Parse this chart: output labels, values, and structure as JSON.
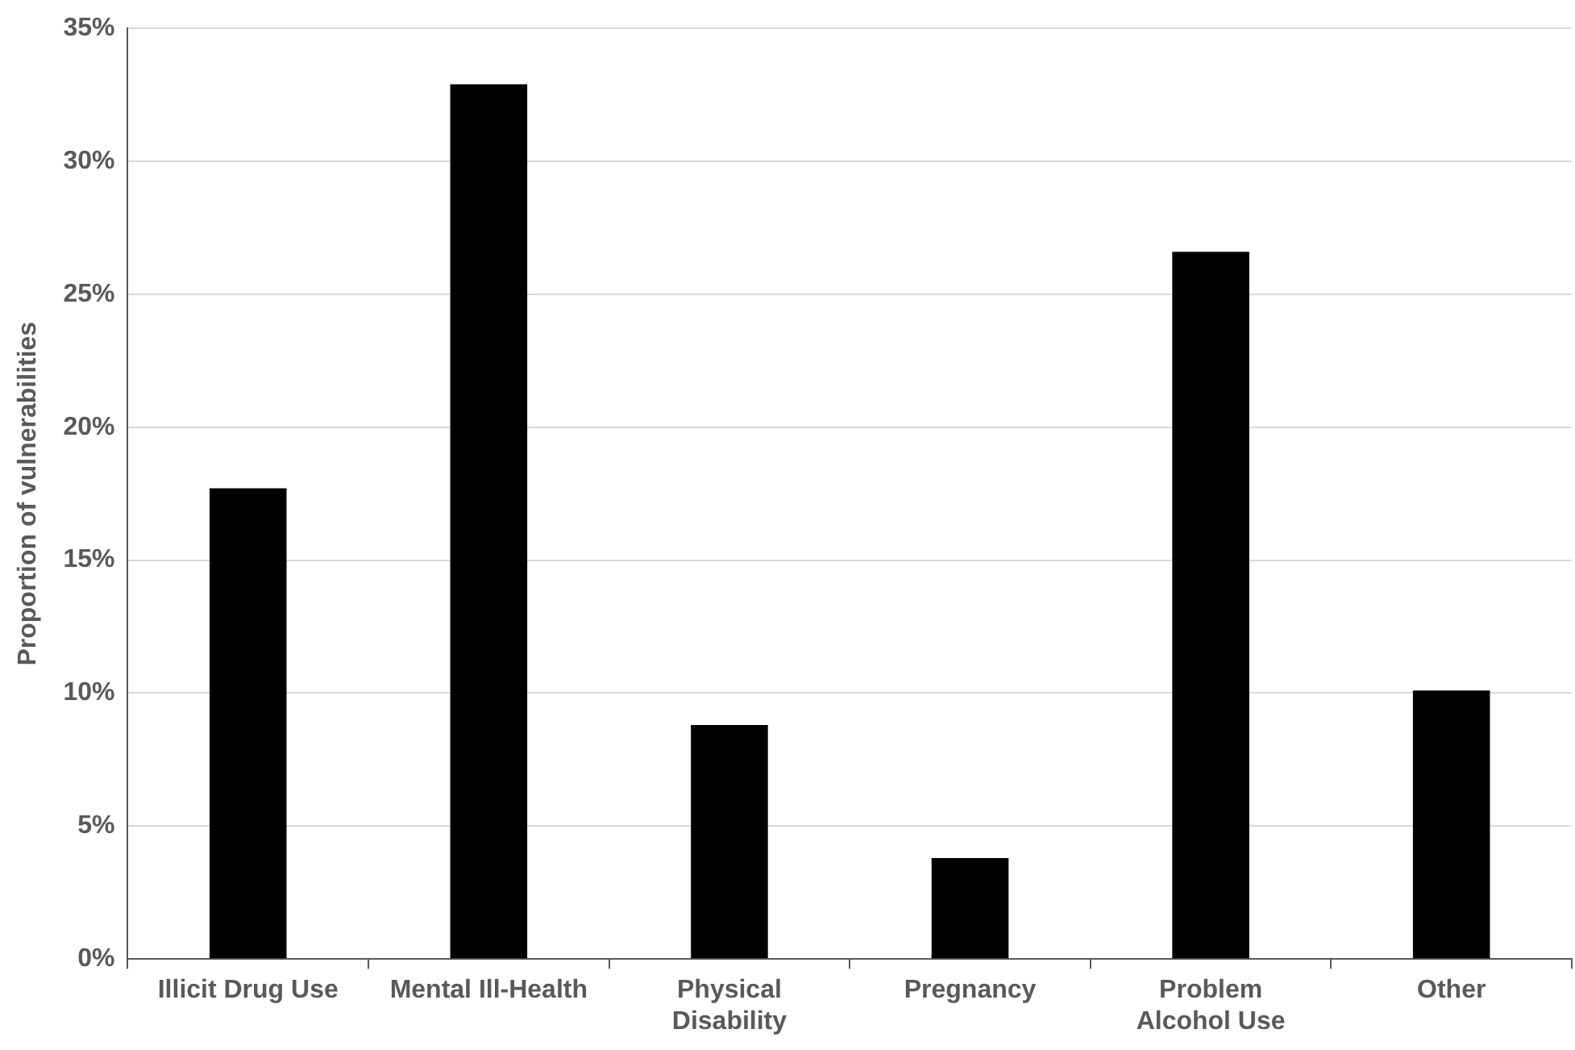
{
  "chart_data": {
    "type": "bar",
    "ylabel": "Proportion of vulnerabilities",
    "categories": [
      "Illicit Drug Use",
      "Mental Ill-Health",
      "Physical Disability",
      "Pregnancy",
      "Problem Alcohol Use",
      "Other"
    ],
    "values": [
      17.7,
      32.9,
      8.8,
      3.8,
      26.6,
      10.1
    ],
    "color": "#000000",
    "ylim": [
      0,
      35
    ],
    "yticks": [
      {
        "value": 0,
        "label": "0%"
      },
      {
        "value": 5,
        "label": "5%"
      },
      {
        "value": 10,
        "label": "10%"
      },
      {
        "value": 15,
        "label": "15%"
      },
      {
        "value": 20,
        "label": "20%"
      },
      {
        "value": 25,
        "label": "25%"
      },
      {
        "value": 30,
        "label": "30%"
      },
      {
        "value": 35,
        "label": "35%"
      }
    ],
    "grid": "y",
    "legend": false
  }
}
